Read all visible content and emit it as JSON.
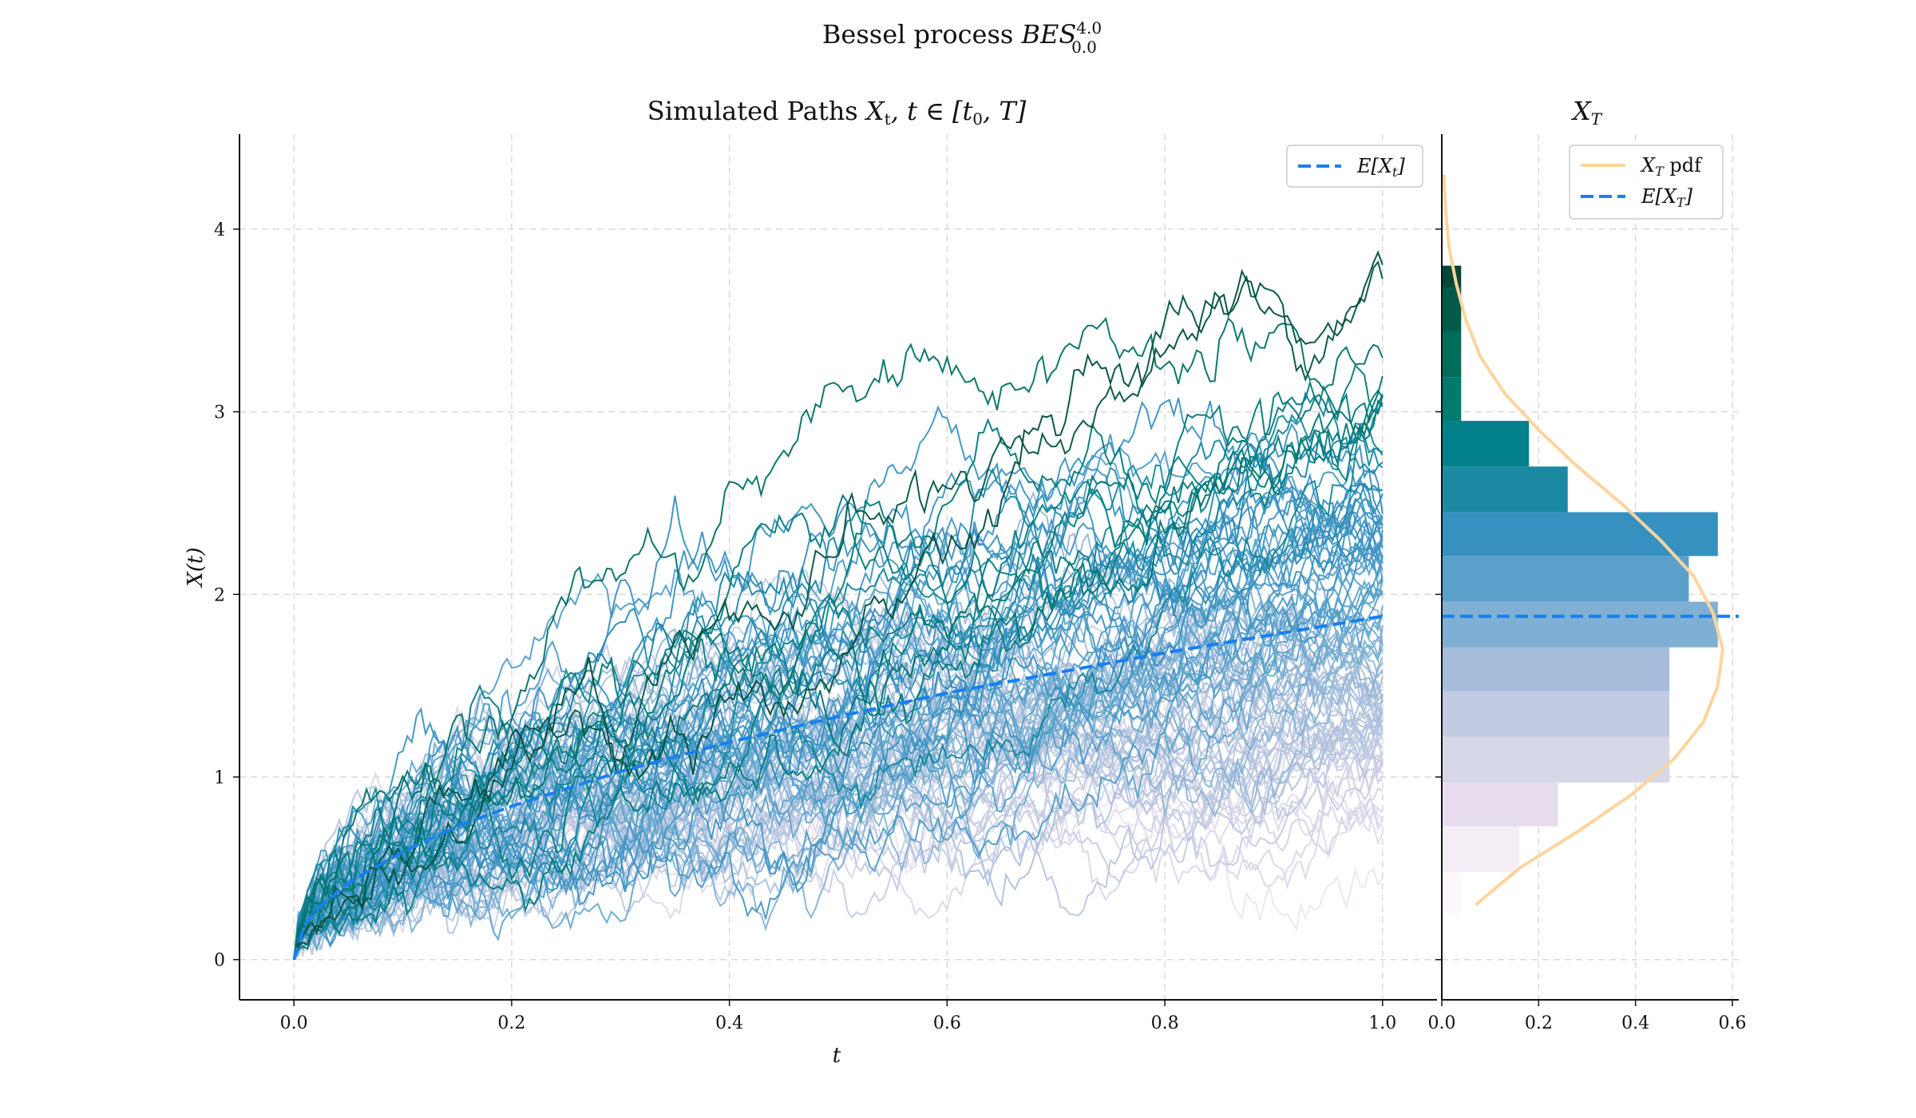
{
  "figure": {
    "suptitle_text": "Bessel process ",
    "suptitle_math": "BES",
    "suptitle_sup": "4.0",
    "suptitle_sub": "0.0"
  },
  "chart_data": [
    {
      "type": "line",
      "title_text": "Simulated Paths ",
      "title_math": "X",
      "title_math_sub": "t",
      "title_math_rest": ", t ∈ [t",
      "title_math_sub2": "0",
      "title_math_end": ", T]",
      "xlabel": "t",
      "ylabel": "X(t)",
      "xlim": [
        -0.05,
        1.05
      ],
      "ylim": [
        -0.22,
        4.52
      ],
      "xticks": [
        "0.0",
        "0.2",
        "0.4",
        "0.6",
        "0.8",
        "1.0"
      ],
      "xtick_values": [
        0.0,
        0.2,
        0.4,
        0.6,
        0.8,
        1.0
      ],
      "yticks": [
        "0",
        "1",
        "2",
        "3",
        "4"
      ],
      "ytick_values": [
        0,
        1,
        2,
        3,
        4
      ],
      "grid": true,
      "legend_placement": "top-right",
      "legend": [
        {
          "label_math": "E[X",
          "label_sub": "t",
          "label_end": "]",
          "style": "dashed",
          "color": "#1a7ff0"
        }
      ],
      "n_paths": 100,
      "mean_curve": {
        "name": "E[X_t]",
        "x": [
          0,
          0.01,
          0.02,
          0.05,
          0.1,
          0.15,
          0.2,
          0.3,
          0.4,
          0.5,
          0.6,
          0.7,
          0.8,
          0.9,
          1.0
        ],
        "y": [
          0,
          0.19,
          0.27,
          0.42,
          0.59,
          0.73,
          0.84,
          1.03,
          1.19,
          1.33,
          1.46,
          1.57,
          1.68,
          1.78,
          1.88
        ]
      },
      "colormap": [
        "#fff7fb",
        "#ece2f0",
        "#d0d1e6",
        "#a6bddb",
        "#67a9cf",
        "#3690c0",
        "#02818a",
        "#016c59",
        "#014636"
      ]
    },
    {
      "type": "bar",
      "orientation": "horizontal",
      "title_math": "X",
      "title_sub": "T",
      "xlim": [
        0,
        0.6
      ],
      "xticks": [
        "0.0",
        "0.2",
        "0.4",
        "0.6"
      ],
      "xtick_values": [
        0.0,
        0.2,
        0.4,
        0.6
      ],
      "grid": true,
      "legend_placement": "top-right",
      "legend": [
        {
          "label_math": "X",
          "label_sub": "T",
          "label_end": " pdf",
          "style": "solid",
          "color": "#fdd49e"
        },
        {
          "label_math": "E[X",
          "label_sub": "T",
          "label_end": "]",
          "style": "dashed",
          "color": "#1a7ff0"
        }
      ],
      "bins": [
        {
          "y0": 0.25,
          "y1": 0.48,
          "value": 0.04,
          "color": "#fff7fb"
        },
        {
          "y0": 0.48,
          "y1": 0.73,
          "value": 0.16,
          "color": "#f4edf6"
        },
        {
          "y0": 0.73,
          "y1": 0.97,
          "value": 0.24,
          "color": "#e7dcee"
        },
        {
          "y0": 0.97,
          "y1": 1.22,
          "value": 0.47,
          "color": "#d6d8e8"
        },
        {
          "y0": 1.22,
          "y1": 1.47,
          "value": 0.47,
          "color": "#c2cbe2"
        },
        {
          "y0": 1.47,
          "y1": 1.71,
          "value": 0.47,
          "color": "#a6bddb"
        },
        {
          "y0": 1.71,
          "y1": 1.96,
          "value": 0.57,
          "color": "#7fb0d4"
        },
        {
          "y0": 1.96,
          "y1": 2.21,
          "value": 0.51,
          "color": "#5aa0cb"
        },
        {
          "y0": 2.21,
          "y1": 2.45,
          "value": 0.57,
          "color": "#3690c0"
        },
        {
          "y0": 2.45,
          "y1": 2.7,
          "value": 0.26,
          "color": "#1c89a3"
        },
        {
          "y0": 2.7,
          "y1": 2.95,
          "value": 0.18,
          "color": "#02818a"
        },
        {
          "y0": 2.95,
          "y1": 3.19,
          "value": 0.04,
          "color": "#017a6e"
        },
        {
          "y0": 3.19,
          "y1": 3.44,
          "value": 0.04,
          "color": "#016c59"
        },
        {
          "y0": 3.44,
          "y1": 3.68,
          "value": 0.04,
          "color": "#015a48"
        },
        {
          "y0": 3.68,
          "y1": 3.8,
          "value": 0.04,
          "color": "#014636"
        }
      ],
      "pdf_curve": {
        "name": "X_T pdf",
        "y": [
          0.3,
          0.5,
          0.7,
          0.9,
          1.1,
          1.3,
          1.5,
          1.7,
          1.9,
          2.1,
          2.3,
          2.5,
          2.7,
          2.9,
          3.1,
          3.3,
          3.5,
          3.7,
          3.9,
          4.1,
          4.3
        ],
        "x": [
          0.07,
          0.16,
          0.28,
          0.39,
          0.48,
          0.54,
          0.57,
          0.58,
          0.56,
          0.52,
          0.45,
          0.37,
          0.28,
          0.2,
          0.13,
          0.08,
          0.05,
          0.03,
          0.015,
          0.008,
          0.004
        ]
      },
      "mean_value": 1.88
    }
  ]
}
